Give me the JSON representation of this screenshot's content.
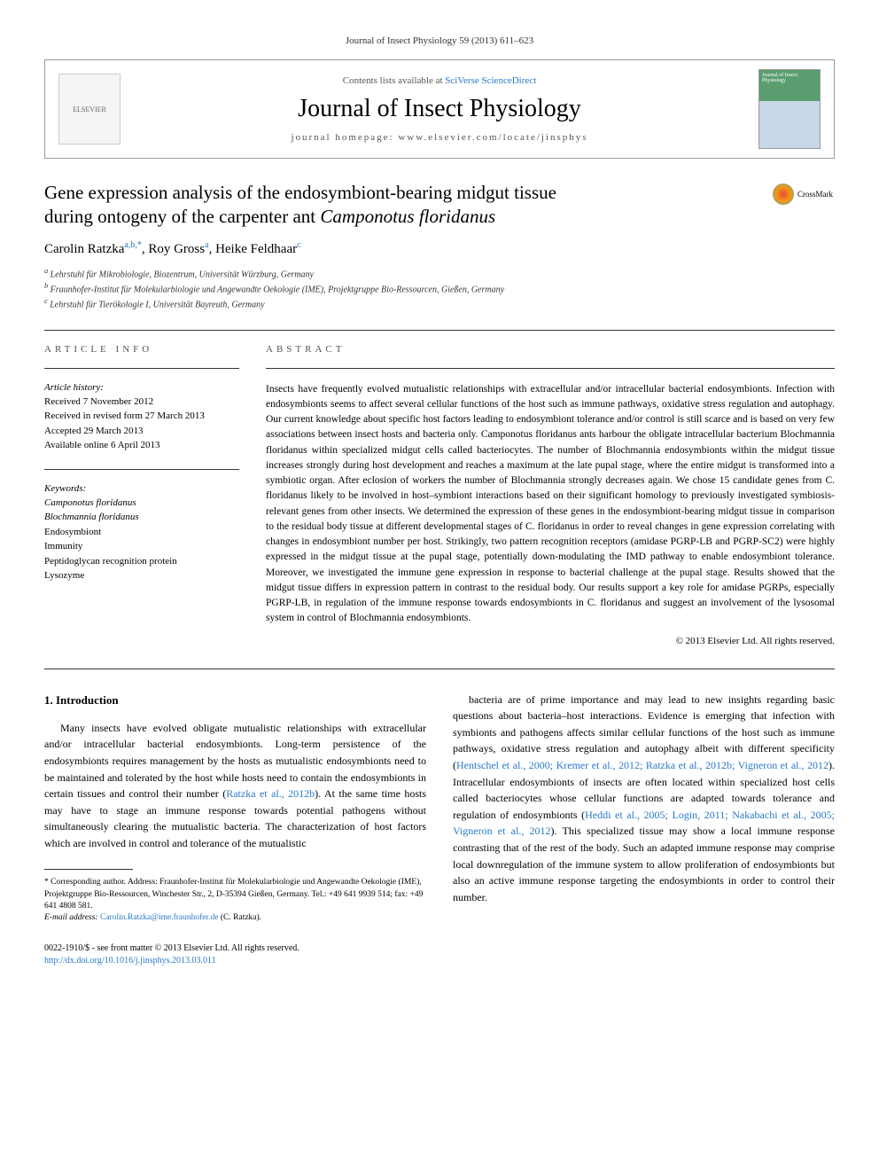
{
  "citation": "Journal of Insect Physiology 59 (2013) 611–623",
  "header": {
    "contents_prefix": "Contents lists available at ",
    "contents_link": "SciVerse ScienceDirect",
    "journal_name": "Journal of Insect Physiology",
    "homepage_prefix": "journal homepage: ",
    "homepage_url": "www.elsevier.com/locate/jinsphys",
    "elsevier_label": "ELSEVIER",
    "cover_text": "Journal of Insect Physiology"
  },
  "crossmark": "CrossMark",
  "title_line1": "Gene expression analysis of the endosymbiont-bearing midgut tissue",
  "title_line2_a": "during ontogeny of the carpenter ant ",
  "title_line2_b": "Camponotus floridanus",
  "authors": {
    "a1_name": "Carolin Ratzka",
    "a1_sup": "a,b,",
    "a1_star": "*",
    "a2_name": "Roy Gross",
    "a2_sup": "a",
    "a3_name": "Heike Feldhaar",
    "a3_sup": "c"
  },
  "affiliations": {
    "a": "Lehrstuhl für Mikrobiologie, Biozentrum, Universität Würzburg, Germany",
    "b": "Fraunhofer-Institut für Molekularbiologie und Angewandte Oekologie (IME), Projektgruppe Bio-Ressourcen, Gießen, Germany",
    "c": "Lehrstuhl für Tierökologie I, Universität Bayreuth, Germany"
  },
  "info": {
    "label": "ARTICLE INFO",
    "history_title": "Article history:",
    "history_lines": [
      "Received 7 November 2012",
      "Received in revised form 27 March 2013",
      "Accepted 29 March 2013",
      "Available online 6 April 2013"
    ],
    "keywords_title": "Keywords:",
    "keywords": [
      "Camponotus floridanus",
      "Blochmannia floridanus",
      "Endosymbiont",
      "Immunity",
      "Peptidoglycan recognition protein",
      "Lysozyme"
    ]
  },
  "abstract": {
    "label": "ABSTRACT",
    "text": "Insects have frequently evolved mutualistic relationships with extracellular and/or intracellular bacterial endosymbionts. Infection with endosymbionts seems to affect several cellular functions of the host such as immune pathways, oxidative stress regulation and autophagy. Our current knowledge about specific host factors leading to endosymbiont tolerance and/or control is still scarce and is based on very few associations between insect hosts and bacteria only. Camponotus floridanus ants harbour the obligate intracellular bacterium Blochmannia floridanus within specialized midgut cells called bacteriocytes. The number of Blochmannia endosymbionts within the midgut tissue increases strongly during host development and reaches a maximum at the late pupal stage, where the entire midgut is transformed into a symbiotic organ. After eclosion of workers the number of Blochmannia strongly decreases again. We chose 15 candidate genes from C. floridanus likely to be involved in host–symbiont interactions based on their significant homology to previously investigated symbiosis-relevant genes from other insects. We determined the expression of these genes in the endosymbiont-bearing midgut tissue in comparison to the residual body tissue at different developmental stages of C. floridanus in order to reveal changes in gene expression correlating with changes in endosymbiont number per host. Strikingly, two pattern recognition receptors (amidase PGRP-LB and PGRP-SC2) were highly expressed in the midgut tissue at the pupal stage, potentially down-modulating the IMD pathway to enable endosymbiont tolerance. Moreover, we investigated the immune gene expression in response to bacterial challenge at the pupal stage. Results showed that the midgut tissue differs in expression pattern in contrast to the residual body. Our results support a key role for amidase PGRPs, especially PGRP-LB, in regulation of the immune response towards endosymbionts in C. floridanus and suggest an involvement of the lysosomal system in control of Blochmannia endosymbionts.",
    "copyright": "© 2013 Elsevier Ltd. All rights reserved."
  },
  "body": {
    "heading": "1. Introduction",
    "col1_p1": "Many insects have evolved obligate mutualistic relationships with extracellular and/or intracellular bacterial endosymbionts. Long-term persistence of the endosymbionts requires management by the hosts as mutualistic endosymbionts need to be maintained and tolerated by the host while hosts need to contain the endosymbionts in certain tissues and control their number (",
    "col1_ref1": "Ratzka et al., 2012b",
    "col1_p1b": "). At the same time hosts may have to stage an immune response towards potential pathogens without simultaneously clearing the mutualistic bacteria. The characterization of host factors which are involved in control and tolerance of the mutualistic",
    "col2_p1": "bacteria are of prime importance and may lead to new insights regarding basic questions about bacteria–host interactions. Evidence is emerging that infection with symbionts and pathogens affects similar cellular functions of the host such as immune pathways, oxidative stress regulation and autophagy albeit with different specificity (",
    "col2_ref1": "Hentschel et al., 2000; Kremer et al., 2012; Ratzka et al., 2012b; Vigneron et al., 2012",
    "col2_p1b": "). Intracellular endosymbionts of insects are often located within specialized host cells called bacteriocytes whose cellular functions are adapted towards tolerance and regulation of endosymbionts (",
    "col2_ref2": "Heddi et al., 2005; Login, 2011; Nakabachi et al., 2005; Vigneron et al., 2012",
    "col2_p1c": "). This specialized tissue may show a local immune response contrasting that of the rest of the body. Such an adapted immune response may comprise local downregulation of the immune system to allow proliferation of endosymbionts but also an active immune response targeting the endosymbionts in order to control their number."
  },
  "footnote": {
    "star": "*",
    "text": " Corresponding author. Address: Fraunhofer-Institut für Molekularbiologie und Angewandte Oekologie (IME), Projektgruppe Bio-Ressourcen, Winchester Str., 2, D-35394 Gießen, Germany. Tel.: +49 641 9939 514; fax: +49 641 4808 581.",
    "email_label": "E-mail address: ",
    "email": "Carolin.Ratzka@ime.fraunhofer.de",
    "email_suffix": " (C. Ratzka)."
  },
  "footer": {
    "line1": "0022-1910/$ - see front matter © 2013 Elsevier Ltd. All rights reserved.",
    "doi_url": "http://dx.doi.org/10.1016/j.jinsphys.2013.03.011"
  },
  "colors": {
    "link": "#2878c8",
    "text": "#000000",
    "muted": "#555555",
    "border": "#999999"
  }
}
